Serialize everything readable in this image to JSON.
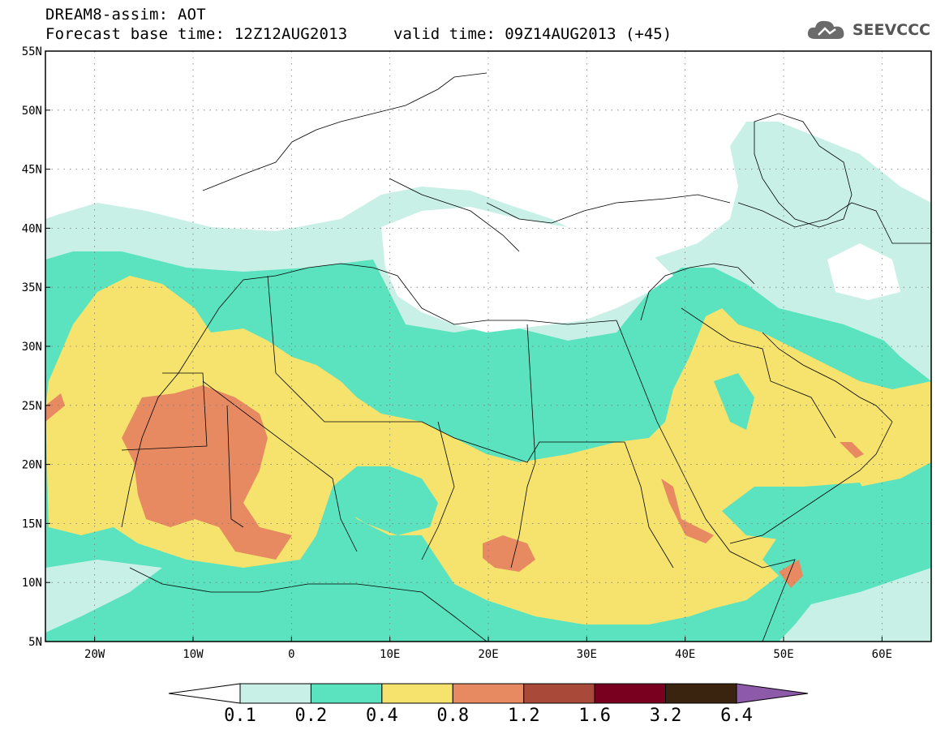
{
  "header": {
    "title": "DREAM8-assim: AOT",
    "base_time": "Forecast base time: 12Z12AUG2013",
    "valid_time": "valid time: 09Z14AUG2013 (+45)"
  },
  "logo": {
    "text": "SEEVCCC",
    "icon": "cloud-logo-icon"
  },
  "axes": {
    "lat_labels": [
      "55N",
      "50N",
      "45N",
      "40N",
      "35N",
      "30N",
      "25N",
      "20N",
      "15N",
      "10N",
      "5N"
    ],
    "lon_labels": [
      "20W",
      "10W",
      "0",
      "10E",
      "20E",
      "30E",
      "40E",
      "50E",
      "60E"
    ],
    "lon_range": [
      -25,
      65
    ],
    "lat_range": [
      5,
      55
    ],
    "grid": "dotted"
  },
  "legend": {
    "levels": [
      "0.1",
      "0.2",
      "0.4",
      "0.8",
      "1.2",
      "1.6",
      "3.2",
      "6.4"
    ],
    "colors": [
      "#ffffff",
      "#c8f0e6",
      "#5ae3be",
      "#f5e36e",
      "#e78a62",
      "#a8493a",
      "#7a0020",
      "#3a2410",
      "#8c5aa8"
    ]
  },
  "chart_data": {
    "type": "heatmap",
    "variable": "AOT",
    "x_range": [
      -25,
      65
    ],
    "y_range": [
      5,
      55
    ],
    "colorbar_levels": [
      0.1,
      0.2,
      0.4,
      0.8,
      1.2,
      1.6,
      3.2,
      6.4
    ]
  }
}
